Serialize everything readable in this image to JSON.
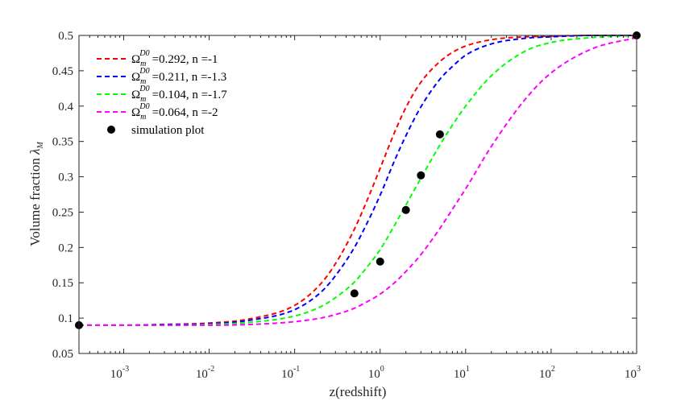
{
  "chart_data": {
    "type": "line",
    "title": "",
    "xlabel": "z(redshift)",
    "ylabel_prefix": "Volume fraction ",
    "ylabel_symbol": "λ",
    "ylabel_subscript": "M",
    "xscale": "log",
    "xlim": [
      0.0003,
      1000
    ],
    "ylim": [
      0.05,
      0.5
    ],
    "x_ticks": [
      0.001,
      0.01,
      0.1,
      1,
      10,
      100,
      1000
    ],
    "x_tick_base": "10",
    "x_tick_exponents": [
      "-3",
      "-2",
      "-1",
      "0",
      "1",
      "2",
      "3"
    ],
    "y_ticks": [
      0.05,
      0.1,
      0.15,
      0.2,
      0.25,
      0.3,
      0.35,
      0.4,
      0.45,
      0.5
    ],
    "y_tick_labels": [
      "0.05",
      "0.1",
      "0.15",
      "0.2",
      "0.25",
      "0.3",
      "0.35",
      "0.4",
      "0.45",
      "0.5"
    ],
    "grid": false,
    "legend_position": "top-left",
    "series": [
      {
        "name": "Ω_m^{D0} =0.292, n =-1",
        "omega_label": "Ω",
        "omega_sub": "m",
        "omega_sup": "D0",
        "value_text": "=0.292, n =-1",
        "color": "#ff0000",
        "style": "dashed",
        "x": [
          0.0003,
          0.001,
          0.003,
          0.01,
          0.03,
          0.1,
          0.2,
          0.3,
          0.5,
          0.7,
          1,
          1.5,
          2,
          3,
          5,
          7,
          10,
          20,
          50,
          100,
          300,
          1000
        ],
        "y": [
          0.09,
          0.09,
          0.091,
          0.093,
          0.099,
          0.118,
          0.148,
          0.177,
          0.226,
          0.266,
          0.312,
          0.365,
          0.398,
          0.434,
          0.463,
          0.476,
          0.485,
          0.494,
          0.498,
          0.499,
          0.5,
          0.5
        ]
      },
      {
        "name": "Ω_m^{D0} =0.211, n =-1.3",
        "omega_label": "Ω",
        "omega_sub": "m",
        "omega_sup": "D0",
        "value_text": "=0.211, n =-1.3",
        "color": "#0000ff",
        "style": "dashed",
        "x": [
          0.0003,
          0.001,
          0.003,
          0.01,
          0.03,
          0.1,
          0.2,
          0.3,
          0.5,
          0.7,
          1,
          1.5,
          2,
          3,
          5,
          7,
          10,
          20,
          50,
          100,
          300,
          1000
        ],
        "y": [
          0.09,
          0.09,
          0.091,
          0.092,
          0.097,
          0.112,
          0.136,
          0.16,
          0.2,
          0.234,
          0.274,
          0.325,
          0.358,
          0.399,
          0.438,
          0.456,
          0.472,
          0.488,
          0.496,
          0.498,
          0.5,
          0.5
        ]
      },
      {
        "name": "Ω_m^{D0} =0.104, n =-1.7",
        "omega_label": "Ω",
        "omega_sub": "m",
        "omega_sup": "D0",
        "value_text": "=0.104, n =-1.7",
        "color": "#00ff00",
        "style": "dashed",
        "x": [
          0.0003,
          0.001,
          0.003,
          0.01,
          0.03,
          0.1,
          0.2,
          0.3,
          0.5,
          0.7,
          1,
          1.5,
          2,
          3,
          5,
          7,
          10,
          20,
          50,
          100,
          300,
          1000
        ],
        "y": [
          0.09,
          0.09,
          0.09,
          0.091,
          0.094,
          0.103,
          0.116,
          0.129,
          0.151,
          0.172,
          0.197,
          0.233,
          0.26,
          0.298,
          0.345,
          0.373,
          0.4,
          0.443,
          0.478,
          0.49,
          0.497,
          0.5
        ]
      },
      {
        "name": "Ω_m^{D0} =0.064, n =-2",
        "omega_label": "Ω",
        "omega_sub": "m",
        "omega_sup": "D0",
        "value_text": "=0.064, n =-2",
        "color": "#ff00ff",
        "style": "dashed",
        "x": [
          0.0003,
          0.001,
          0.003,
          0.01,
          0.03,
          0.1,
          0.2,
          0.3,
          0.5,
          0.7,
          1,
          1.5,
          2,
          3,
          5,
          7,
          10,
          20,
          50,
          100,
          300,
          1000
        ],
        "y": [
          0.09,
          0.09,
          0.09,
          0.09,
          0.091,
          0.095,
          0.1,
          0.105,
          0.114,
          0.123,
          0.134,
          0.151,
          0.166,
          0.19,
          0.227,
          0.254,
          0.283,
          0.343,
          0.41,
          0.447,
          0.481,
          0.497
        ]
      }
    ],
    "scatter": {
      "name": "simulation plot",
      "color": "#000000",
      "x": [
        0.0003,
        0.5,
        1,
        2,
        3,
        5,
        1000
      ],
      "y": [
        0.09,
        0.135,
        0.18,
        0.253,
        0.302,
        0.36,
        0.5
      ]
    }
  }
}
